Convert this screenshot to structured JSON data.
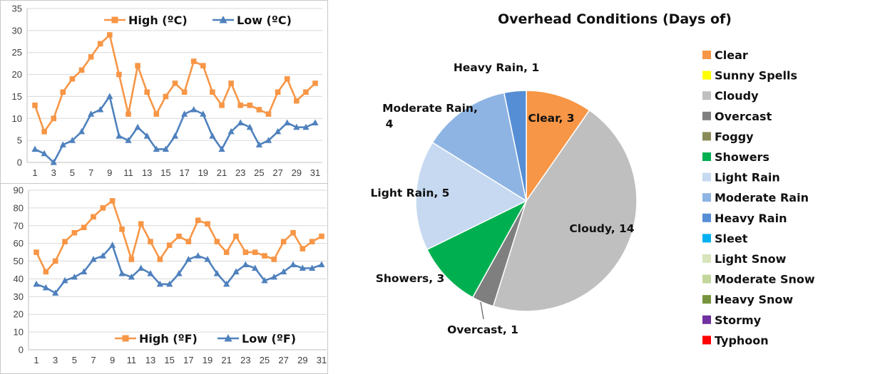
{
  "chart_data": [
    {
      "type": "line",
      "title": "",
      "x": [
        1,
        2,
        3,
        4,
        5,
        6,
        7,
        8,
        9,
        10,
        11,
        12,
        13,
        14,
        15,
        16,
        17,
        18,
        19,
        20,
        21,
        22,
        23,
        24,
        25,
        26,
        27,
        28,
        29,
        30,
        31
      ],
      "x_tick_labels": [
        "1",
        "3",
        "5",
        "7",
        "9",
        "11",
        "13",
        "15",
        "17",
        "19",
        "21",
        "23",
        "25",
        "27",
        "29",
        "31"
      ],
      "ylim": [
        0,
        35
      ],
      "y_ticks": [
        0,
        5,
        10,
        15,
        20,
        25,
        30,
        35
      ],
      "legend_position": "top",
      "series": [
        {
          "name": "High (ºC)",
          "color": "#F79646",
          "marker": "square",
          "values": [
            13,
            7,
            10,
            16,
            19,
            21,
            24,
            27,
            29,
            20,
            11,
            22,
            16,
            11,
            15,
            18,
            16,
            23,
            22,
            16,
            13,
            18,
            13,
            13,
            12,
            11,
            16,
            19,
            14,
            16,
            18
          ]
        },
        {
          "name": "Low (ºC)",
          "color": "#4F81BD",
          "marker": "triangle",
          "values": [
            3,
            2,
            0,
            4,
            5,
            7,
            11,
            12,
            15,
            6,
            5,
            8,
            6,
            3,
            3,
            6,
            11,
            12,
            11,
            6,
            3,
            7,
            9,
            8,
            4,
            5,
            7,
            9,
            8,
            8,
            9
          ]
        }
      ]
    },
    {
      "type": "line",
      "title": "",
      "x": [
        1,
        2,
        3,
        4,
        5,
        6,
        7,
        8,
        9,
        10,
        11,
        12,
        13,
        14,
        15,
        16,
        17,
        18,
        19,
        20,
        21,
        22,
        23,
        24,
        25,
        26,
        27,
        28,
        29,
        30,
        31
      ],
      "x_tick_labels": [
        "1",
        "3",
        "5",
        "7",
        "9",
        "11",
        "13",
        "15",
        "17",
        "19",
        "21",
        "23",
        "25",
        "27",
        "29",
        "31"
      ],
      "ylim": [
        0,
        90
      ],
      "y_ticks": [
        0,
        10,
        20,
        30,
        40,
        50,
        60,
        70,
        80,
        90
      ],
      "legend_position": "bottom",
      "series": [
        {
          "name": "High (ºF)",
          "color": "#F79646",
          "marker": "square",
          "values": [
            55,
            44,
            50,
            61,
            66,
            69,
            75,
            80,
            84,
            68,
            51,
            71,
            61,
            51,
            59,
            64,
            61,
            73,
            71,
            61,
            55,
            64,
            55,
            55,
            53,
            51,
            61,
            66,
            57,
            61,
            64
          ]
        },
        {
          "name": "Low (ºF)",
          "color": "#4F81BD",
          "marker": "triangle",
          "values": [
            37,
            35,
            32,
            39,
            41,
            44,
            51,
            53,
            59,
            43,
            41,
            46,
            43,
            37,
            37,
            43,
            51,
            53,
            51,
            43,
            37,
            44,
            48,
            46,
            39,
            41,
            44,
            48,
            46,
            46,
            48
          ]
        }
      ]
    },
    {
      "type": "pie",
      "title": "Overhead Conditions (Days of)",
      "legend_position": "right",
      "categories": [
        "Clear",
        "Sunny Spells",
        "Cloudy",
        "Overcast",
        "Foggy",
        "Showers",
        "Light Rain",
        "Moderate Rain",
        "Heavy Rain",
        "Sleet",
        "Light Snow",
        "Moderate Snow",
        "Heavy Snow",
        "Stormy",
        "Typhoon"
      ],
      "values": [
        3,
        0,
        14,
        1,
        0,
        3,
        5,
        4,
        1,
        0,
        0,
        0,
        0,
        0,
        0
      ],
      "colors": [
        "#F79646",
        "#FFFF00",
        "#BFBFBF",
        "#7F7F7F",
        "#8B8B5A",
        "#00B050",
        "#C6D9F1",
        "#8EB4E3",
        "#558ED5",
        "#00B0F0",
        "#D8E4BC",
        "#C3D69B",
        "#77933C",
        "#7030A0",
        "#FF0000"
      ],
      "data_labels": [
        "Clear, 3",
        "",
        "Cloudy, 14",
        "Overcast, 1",
        "",
        "Showers, 3",
        "Light Rain, 5",
        "Moderate Rain, 4",
        "Heavy Rain, 1",
        "",
        "",
        "",
        "",
        "",
        ""
      ]
    }
  ]
}
